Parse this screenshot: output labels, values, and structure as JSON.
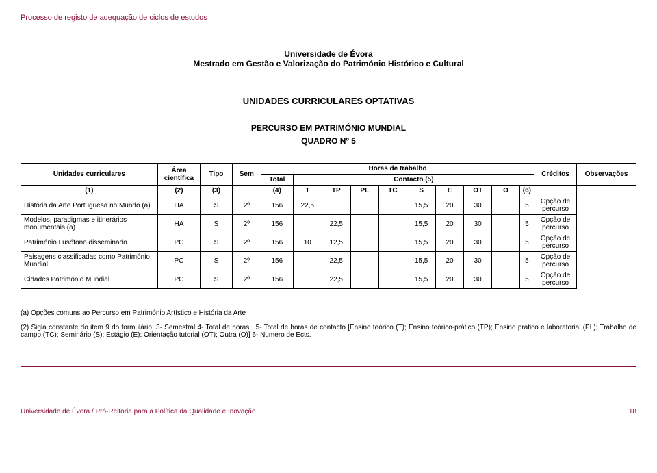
{
  "header": {
    "process_title": "Processo de registo de adequação de ciclos de estudos"
  },
  "title": {
    "university": "Universidade de Évora",
    "program": "Mestrado em Gestão e Valorização do Património Histórico e Cultural"
  },
  "section": {
    "main": "UNIDADES CURRICULARES OPTATIVAS",
    "sub": "PERCURSO EM PATRIMÓNIO MUNDIAL",
    "quadro": "QUADRO Nº 5"
  },
  "table": {
    "headers": {
      "unidades": "Unidades curriculares",
      "area": "Área científica",
      "tipo": "Tipo",
      "sem": "Sem",
      "horas": "Horas de trabalho",
      "total": "Total",
      "contacto": "Contacto (5)",
      "t": "T",
      "tp": "TP",
      "pl": "PL",
      "tc": "TC",
      "s": "S",
      "e": "E",
      "ot": "OT",
      "o": "O",
      "creditos": "Créditos",
      "obs": "Observações"
    },
    "numbers": {
      "c1": "(1)",
      "c2": "(2)",
      "c3": "(3)",
      "c4": "(4)",
      "c6": "(6)"
    },
    "rows": [
      {
        "name": "História da Arte Portuguesa no Mundo (a)",
        "area": "HA",
        "tipo": "S",
        "sem": "2º",
        "total": "156",
        "t": "22,5",
        "tp": "",
        "pl": "",
        "tc": "",
        "s": "15,5",
        "e": "20",
        "ot": "30",
        "o": "",
        "cred": "5",
        "obs": "Opção de percurso"
      },
      {
        "name": "Modelos, paradigmas e itinerários monumentais (a)",
        "area": "HA",
        "tipo": "S",
        "sem": "2º",
        "total": "156",
        "t": "",
        "tp": "22,5",
        "pl": "",
        "tc": "",
        "s": "15,5",
        "e": "20",
        "ot": "30",
        "o": "",
        "cred": "5",
        "obs": "Opção de percurso"
      },
      {
        "name": "Património Lusófono disseminado",
        "area": "PC",
        "tipo": "S",
        "sem": "2º",
        "total": "156",
        "t": "10",
        "tp": "12,5",
        "pl": "",
        "tc": "",
        "s": "15,5",
        "e": "20",
        "ot": "30",
        "o": "",
        "cred": "5",
        "obs": "Opção de percurso"
      },
      {
        "name": "Paisagens classificadas como Património Mundial",
        "area": "PC",
        "tipo": "S",
        "sem": "2º",
        "total": "156",
        "t": "",
        "tp": "22,5",
        "pl": "",
        "tc": "",
        "s": "15,5",
        "e": "20",
        "ot": "30",
        "o": "",
        "cred": "5",
        "obs": "Opção de percurso"
      },
      {
        "name": "Cidades Património Mundial",
        "area": "PC",
        "tipo": "S",
        "sem": "2º",
        "total": "156",
        "t": "",
        "tp": "22,5",
        "pl": "",
        "tc": "",
        "s": "15,5",
        "e": "20",
        "ot": "30",
        "o": "",
        "cred": "5",
        "obs": "Opção de percurso"
      }
    ]
  },
  "notes": {
    "n1": "(a) Opções comuns ao Percurso em Património Artístico e História da Arte",
    "n2": "(2) Sigla constante do item 9 do formulário; 3- Semestral 4- Total de horas . 5- Total de horas de contacto [Ensino teórico (T); Ensino teórico-prático (TP); Ensino prático e laboratorial (PL); Trabalho de campo (TC); Seminário (S); Estágio (E); Orientação tutorial (OT); Outra (O)]  6- Numero de Ects."
  },
  "footer": {
    "left": "Universidade de Évora / Pró-Reitoria para a Política da Qualidade e Inovação",
    "page": "18"
  },
  "style": {
    "accent_color": "#8a0f3a",
    "background_color": "#ffffff",
    "text_color": "#000000",
    "font_family": "Verdana",
    "body_font_size": 11,
    "table_font_size": 10
  }
}
